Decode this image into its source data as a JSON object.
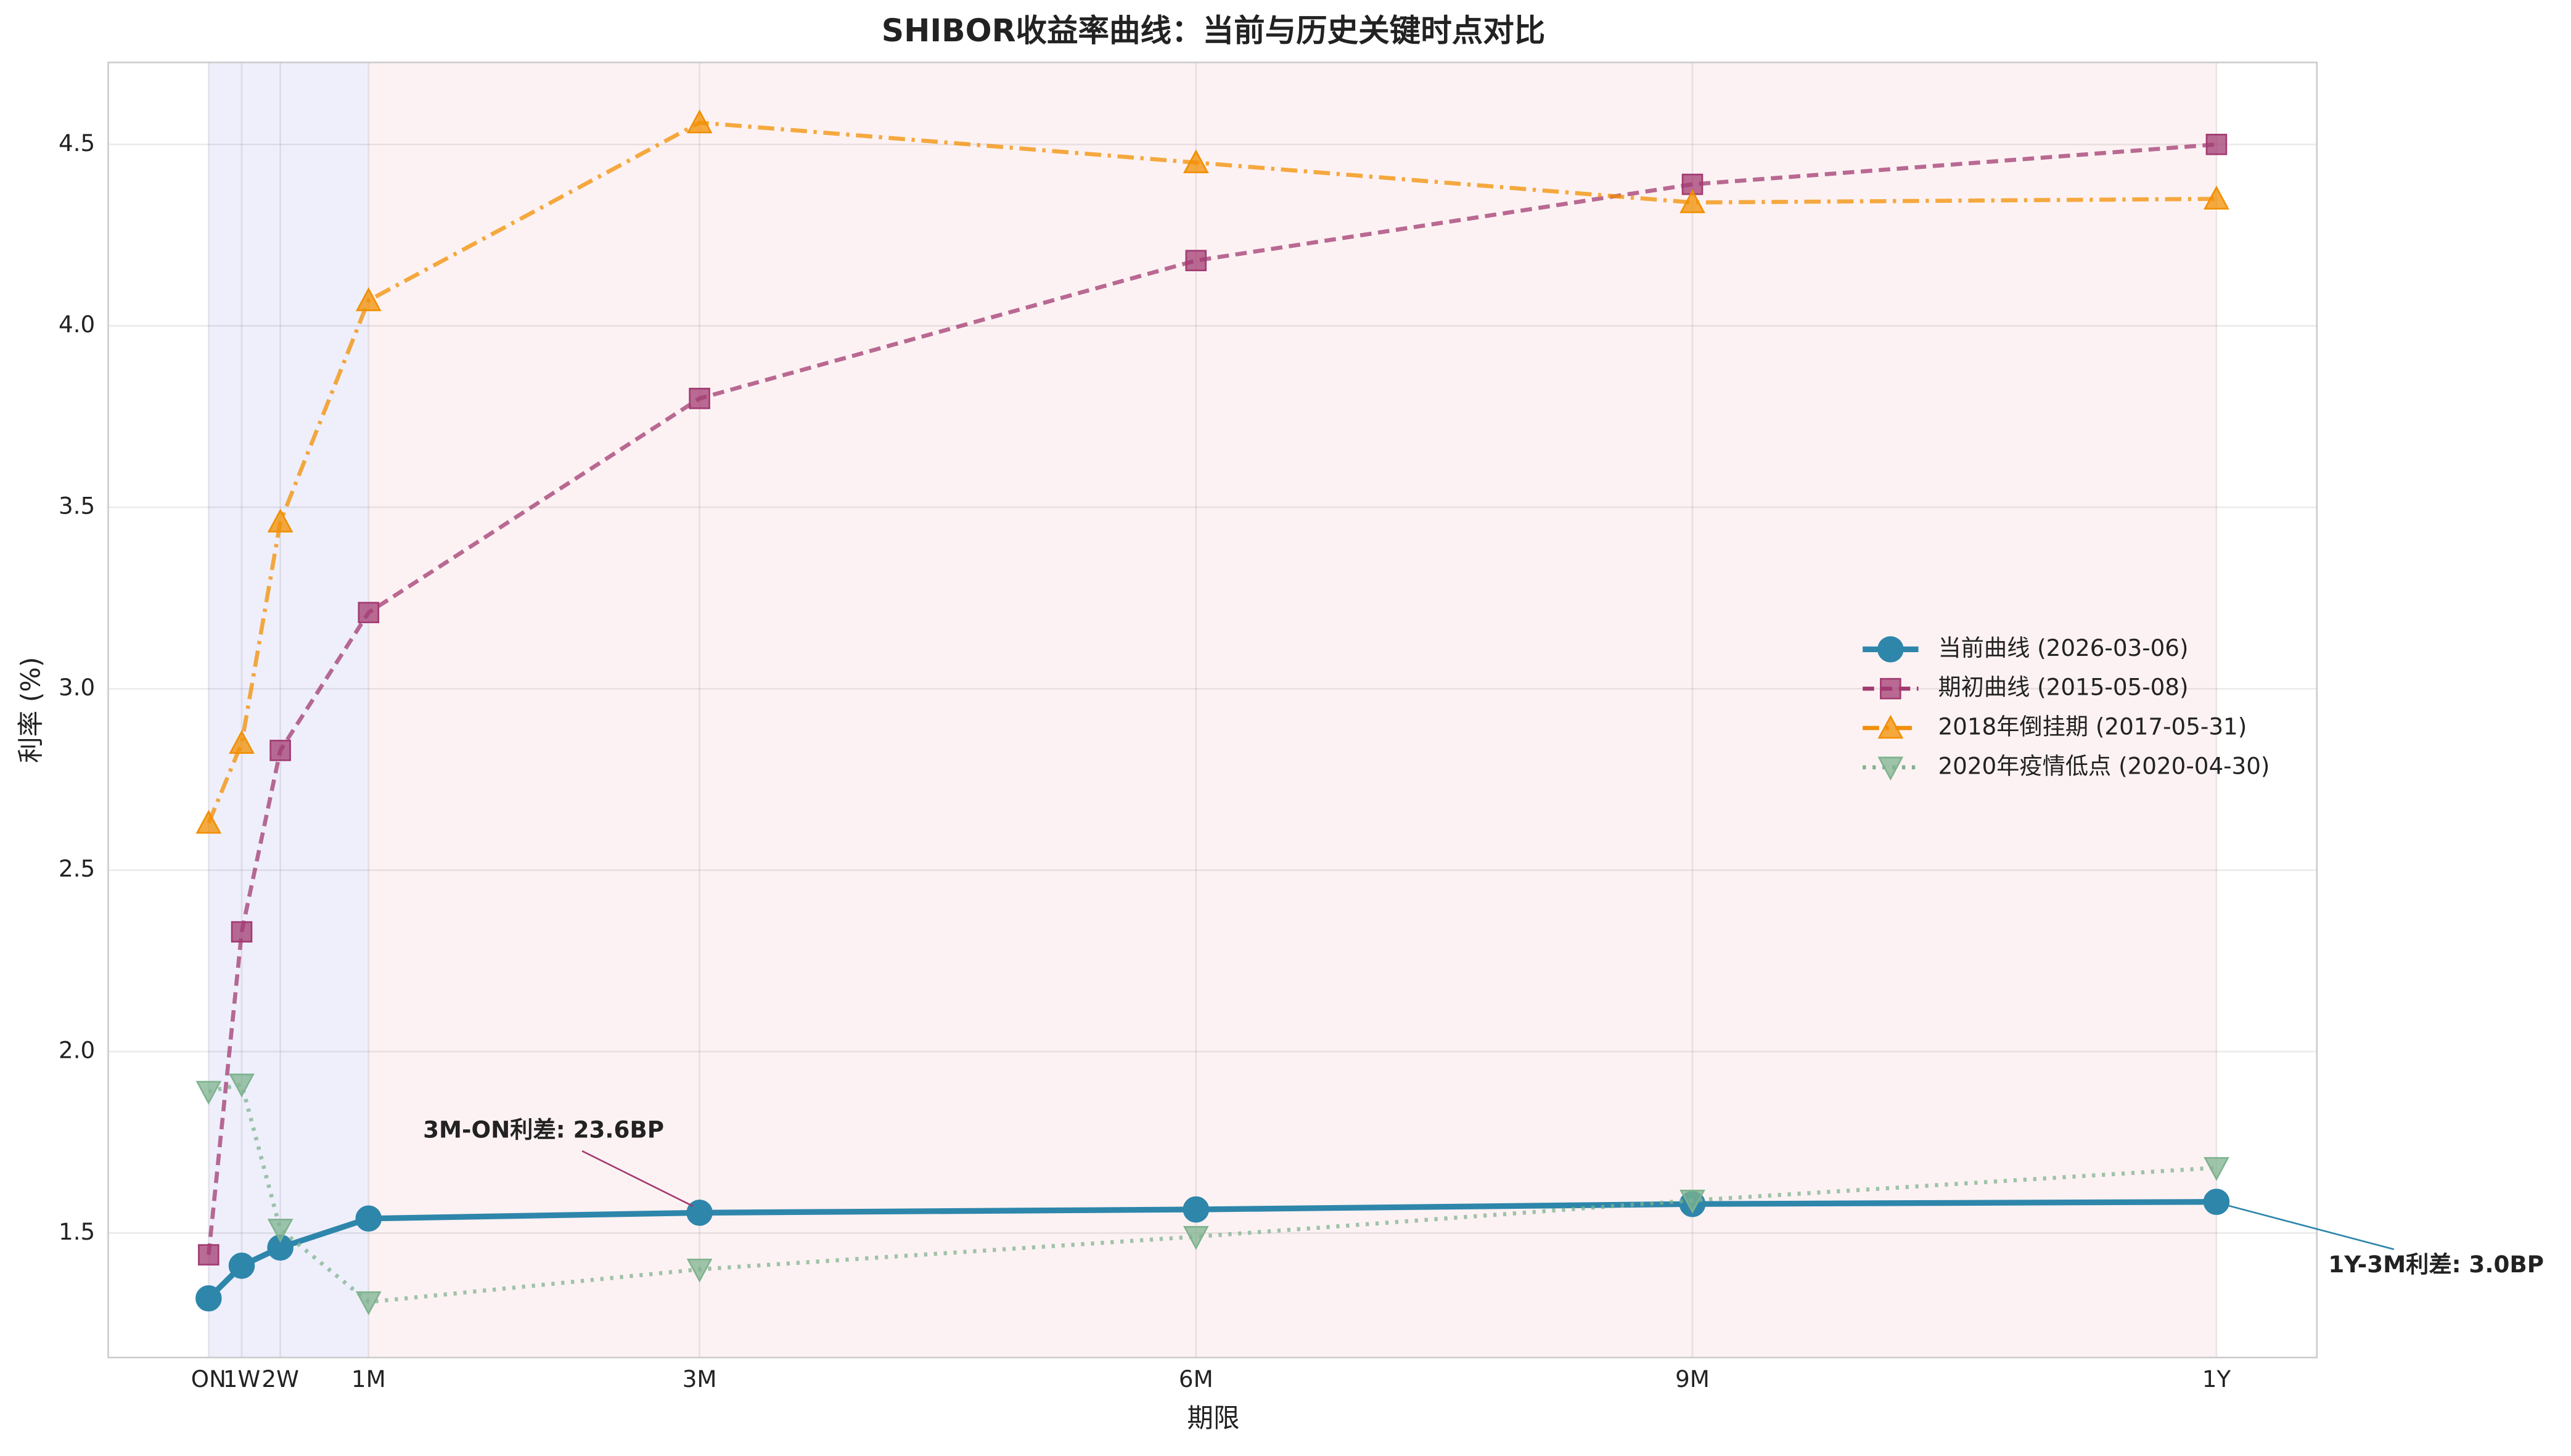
{
  "chart_data": {
    "type": "line",
    "title": "SHIBOR收益率曲线：当前与历史关键时点对比",
    "xlabel": "期限",
    "ylabel": "利率 (%)",
    "x": [
      1,
      7,
      14,
      30,
      90,
      180,
      270,
      365
    ],
    "xlim": [
      -17.2,
      383.2
    ],
    "xticks": [
      {
        "value": 1,
        "label": "ON"
      },
      {
        "value": 7,
        "label": "1W"
      },
      {
        "value": 14,
        "label": "2W"
      },
      {
        "value": 30,
        "label": "1M"
      },
      {
        "value": 90,
        "label": "3M"
      },
      {
        "value": 180,
        "label": "6M"
      },
      {
        "value": 270,
        "label": "9M"
      },
      {
        "value": 365,
        "label": "1Y"
      }
    ],
    "ylim": [
      1.157,
      4.726
    ],
    "yticks": [
      1.5,
      {
        "value": 2.0,
        "label": "2.0"
      },
      2.5,
      {
        "value": 3.0,
        "label": "3.0"
      },
      3.5,
      {
        "value": 4.0,
        "label": "4.0"
      },
      4.5
    ],
    "grid": true,
    "legend": "center right",
    "shaded_regions": [
      {
        "from": 1,
        "to": 30,
        "color": "#e8e8fb"
      },
      {
        "from": 30,
        "to": 365,
        "color": "#fcecee"
      }
    ],
    "series": [
      {
        "name": "当前曲线 (2026-03-06)",
        "color": "#2e86ab",
        "linestyle": "solid",
        "marker": "circle",
        "values": [
          1.32,
          1.41,
          1.46,
          1.54,
          1.556,
          1.565,
          1.58,
          1.586
        ]
      },
      {
        "name": "期初曲线 (2015-05-08)",
        "color": "#a23b72",
        "linestyle": "dashed",
        "marker": "square",
        "values": [
          1.44,
          2.33,
          2.83,
          3.21,
          3.8,
          4.18,
          4.39,
          4.5
        ]
      },
      {
        "name": "2018年倒挂期 (2017-05-31)",
        "color": "#f18f01",
        "linestyle": "dashdot",
        "marker": "triangle-up",
        "values": [
          2.63,
          2.85,
          3.46,
          4.07,
          4.56,
          4.45,
          4.34,
          4.35
        ]
      },
      {
        "name": "2020年疫情低点 (2020-04-30)",
        "color": "#7fb38f",
        "linestyle": "dotted",
        "marker": "triangle-down",
        "values": [
          1.89,
          1.91,
          1.51,
          1.31,
          1.4,
          1.49,
          1.59,
          1.68
        ]
      }
    ],
    "annotations": [
      {
        "text": "3M-ON利差: 23.6BP",
        "color": "#a23b72"
      },
      {
        "text": "1Y-3M利差: 3.0BP",
        "color": "#2e86ab"
      }
    ]
  }
}
